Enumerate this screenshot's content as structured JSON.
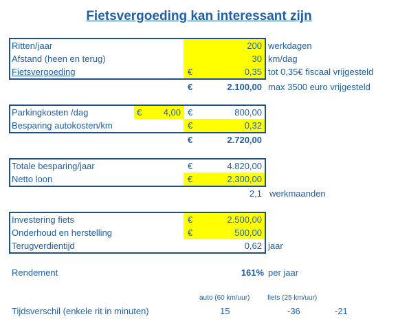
{
  "title": "Fietsvergoeding kan interessant zijn",
  "currency": "€",
  "section1": {
    "rows": [
      {
        "label": "Ritten/jaar",
        "value": "200",
        "unit": "werkdagen"
      },
      {
        "label": "Afstand (heen en terug)",
        "value": "30",
        "unit": "km/dag"
      },
      {
        "label": "Fietsvergoeding",
        "value": "0,35",
        "unit": "tot 0,35€ fiscaal vrijgesteld"
      }
    ],
    "total": {
      "value": "2.100,00",
      "unit": "max 3500 euro vrijgesteld"
    }
  },
  "section2": {
    "rows": [
      {
        "label": "Parkingkosten /dag",
        "mid_value": "4,00",
        "value": "800,00"
      },
      {
        "label": "Besparing autokosten/km",
        "value": "0,32"
      }
    ],
    "total": {
      "value": "2.720,00"
    }
  },
  "section3": {
    "rows": [
      {
        "label": "Totale besparing/jaar",
        "value": "4.820,00"
      },
      {
        "label": "Netto loon",
        "value": "2.300,00"
      }
    ],
    "extra": {
      "value": "2,1",
      "unit": "werkmaanden"
    }
  },
  "section4": {
    "rows": [
      {
        "label": "Investering fiets",
        "value": "2.500,00"
      },
      {
        "label": "Onderhoud en herstelling",
        "value": "500,00"
      },
      {
        "label": "Terugverdientijd",
        "value": "0,62",
        "unit": "jaar"
      }
    ]
  },
  "rendement": {
    "label": "Rendement",
    "value": "161%",
    "unit": "per jaar"
  },
  "tijd": {
    "label": "Tijdsverschil (enkele rit in minuten)",
    "col_auto": "auto (60 km/uur)",
    "col_fiets": "fiets (25 km/uur)",
    "auto_value": "15",
    "fiets_value": "-36",
    "diff_value": "-21"
  }
}
